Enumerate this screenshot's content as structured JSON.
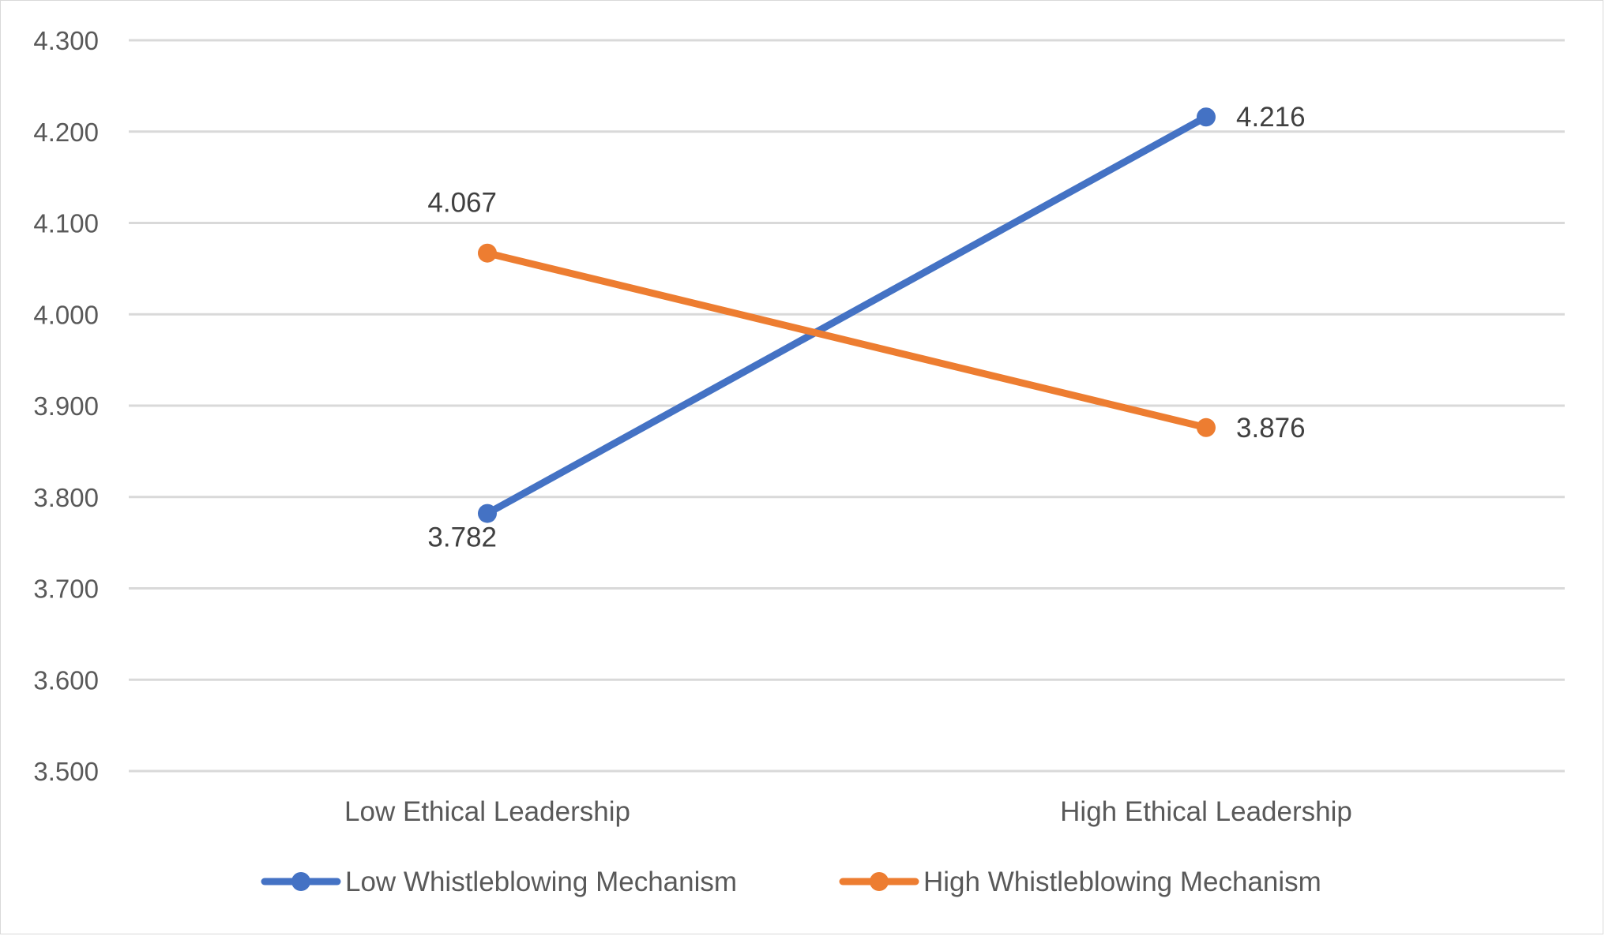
{
  "chart_data": {
    "type": "line",
    "title": "",
    "xlabel": "",
    "ylabel": "",
    "categories": [
      "Low Ethical Leadership",
      "High Ethical Leadership"
    ],
    "series": [
      {
        "name": "Low Whistleblowing Mechanism",
        "values": [
          3.782,
          4.216
        ],
        "labels": [
          "3.782",
          "4.216"
        ],
        "color": "#4472C4"
      },
      {
        "name": "High Whistleblowing Mechanism",
        "values": [
          4.067,
          3.876
        ],
        "labels": [
          "4.067",
          "3.876"
        ],
        "color": "#ED7D31"
      }
    ],
    "ylim": [
      3.5,
      4.3
    ],
    "yticks": [
      "3.500",
      "3.600",
      "3.700",
      "3.800",
      "3.900",
      "4.000",
      "4.100",
      "4.200",
      "4.300"
    ],
    "grid": true,
    "legend_position": "bottom"
  }
}
